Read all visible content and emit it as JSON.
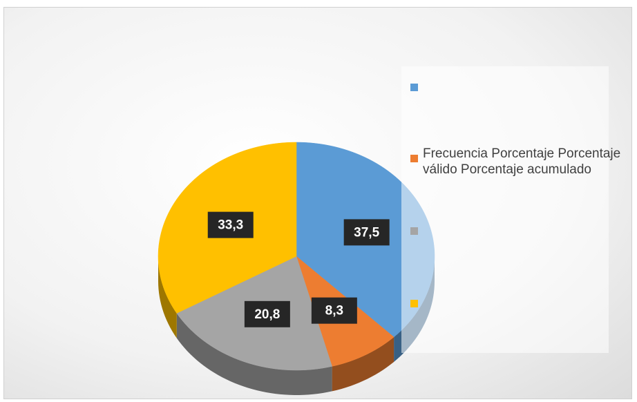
{
  "chart_data": {
    "type": "pie",
    "categories": [
      null,
      "Frecuencia Porcentaje Porcentaje válido Porcentaje acumulado",
      null,
      null
    ],
    "values": [
      37.5,
      8.3,
      20.8,
      33.3
    ],
    "value_labels": [
      "37,5",
      "8,3",
      "20,8",
      "33,3"
    ],
    "colors": [
      "#5b9bd5",
      "#ed7d31",
      "#a5a5a5",
      "#ffc000"
    ],
    "legend": "right"
  }
}
